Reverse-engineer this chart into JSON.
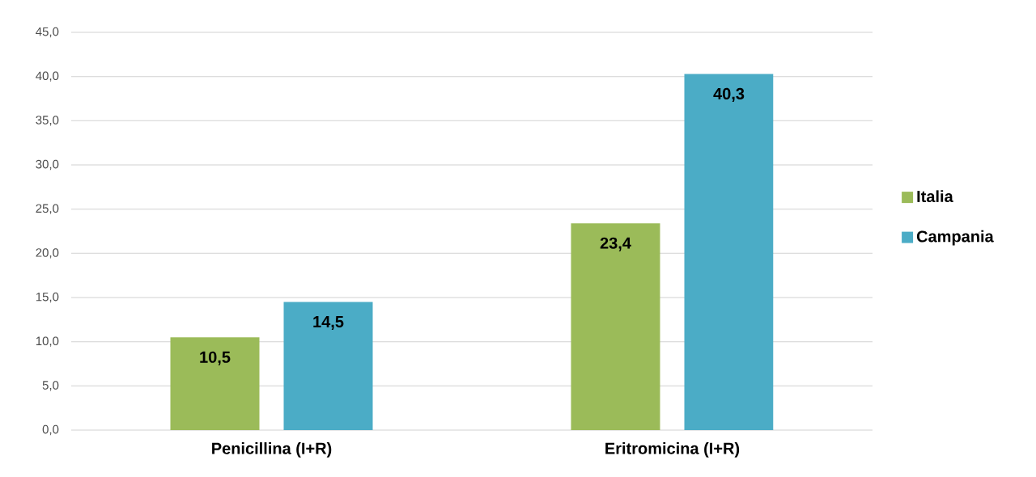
{
  "chart_data": {
    "type": "bar",
    "categories": [
      "Penicillina (I+R)",
      "Eritromicina (I+R)"
    ],
    "series": [
      {
        "name": "Italia",
        "color": "#9bbb59",
        "values": [
          10.5,
          23.4
        ],
        "value_labels": [
          "10,5",
          "23,4"
        ]
      },
      {
        "name": "Campania",
        "color": "#4bacc6",
        "values": [
          14.5,
          40.3
        ],
        "value_labels": [
          "14,5",
          "40,3"
        ]
      }
    ],
    "ylim": [
      0,
      45
    ],
    "yticks": [
      {
        "value": 0,
        "label": "0,0"
      },
      {
        "value": 5,
        "label": "5,0"
      },
      {
        "value": 10,
        "label": "10,0"
      },
      {
        "value": 15,
        "label": "15,0"
      },
      {
        "value": 20,
        "label": "20,0"
      },
      {
        "value": 25,
        "label": "25,0"
      },
      {
        "value": 30,
        "label": "30,0"
      },
      {
        "value": 35,
        "label": "35,0"
      },
      {
        "value": 40,
        "label": "40,0"
      },
      {
        "value": 45,
        "label": "45,0"
      }
    ],
    "grid": "y",
    "legend": "right"
  }
}
